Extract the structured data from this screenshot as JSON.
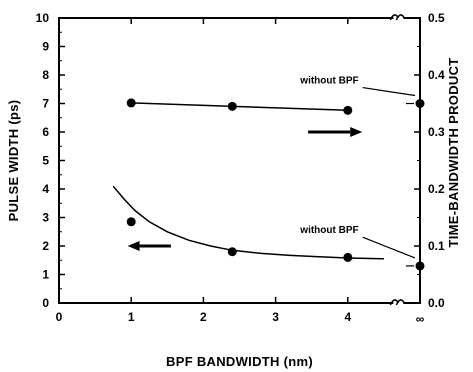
{
  "chart_data": {
    "type": "scatter",
    "xlabel": "BPF BANDWIDTH (nm)",
    "ylabel_left": "PULSE WIDTH  (ps)",
    "ylabel_right": "TIME-BANDWIDTH PRODUCT",
    "xlim": [
      0,
      5
    ],
    "ylim_left": [
      0,
      10
    ],
    "ylim_right": [
      0,
      0.5
    ],
    "x_ticks": [
      {
        "value": 0,
        "label": "0"
      },
      {
        "value": 1,
        "label": "1"
      },
      {
        "value": 2,
        "label": "2"
      },
      {
        "value": 3,
        "label": "3"
      },
      {
        "value": 4,
        "label": "4"
      },
      {
        "value": 5,
        "label": "∞"
      }
    ],
    "y_left_ticks": [
      "0",
      "1",
      "2",
      "3",
      "4",
      "5",
      "6",
      "7",
      "8",
      "9",
      "10"
    ],
    "y_right_ticks": [
      "0.0",
      "0.1",
      "0.2",
      "0.3",
      "0.4",
      "0.5"
    ],
    "axis_break_x": 4.7,
    "series": [
      {
        "axis": "left",
        "points": [
          {
            "x": 1.0,
            "y": 2.85
          },
          {
            "x": 2.4,
            "y": 1.8
          },
          {
            "x": 4.0,
            "y": 1.6
          },
          {
            "x": "∞",
            "y": 1.3
          }
        ],
        "fit": [
          {
            "x": 0.75,
            "y": 4.1
          },
          {
            "x": 0.9,
            "y": 3.65
          },
          {
            "x": 1.05,
            "y": 3.25
          },
          {
            "x": 1.25,
            "y": 2.85
          },
          {
            "x": 1.5,
            "y": 2.5
          },
          {
            "x": 1.8,
            "y": 2.2
          },
          {
            "x": 2.1,
            "y": 2.0
          },
          {
            "x": 2.4,
            "y": 1.85
          },
          {
            "x": 2.8,
            "y": 1.74
          },
          {
            "x": 3.2,
            "y": 1.67
          },
          {
            "x": 3.6,
            "y": 1.62
          },
          {
            "x": 4.0,
            "y": 1.58
          },
          {
            "x": 4.5,
            "y": 1.55
          }
        ]
      },
      {
        "axis": "right",
        "points": [
          {
            "x": 1.0,
            "y": 0.351
          },
          {
            "x": 2.4,
            "y": 0.345
          },
          {
            "x": 4.0,
            "y": 0.338
          },
          {
            "x": "∞",
            "y": 0.35
          }
        ],
        "fit": [
          {
            "x": 1.0,
            "y": 0.351
          },
          {
            "x": 4.0,
            "y": 0.338
          }
        ]
      }
    ],
    "arrows": [
      {
        "label": "",
        "direction": "left",
        "axis": "left",
        "x_from": 1.55,
        "x_to": 0.95,
        "y": 2.0
      },
      {
        "label": "",
        "direction": "right",
        "axis": "right",
        "x_from": 3.45,
        "x_to": 4.2,
        "y": 0.3
      }
    ],
    "annotations": [
      {
        "text": "without BPF",
        "axis": "right",
        "x": 4.15,
        "y": 0.385,
        "point_x": "∞",
        "point_y": 0.35
      },
      {
        "text": "without BPF",
        "axis": "left",
        "x": 4.15,
        "y": 2.45,
        "point_x": "∞",
        "point_y": 1.3
      }
    ]
  }
}
